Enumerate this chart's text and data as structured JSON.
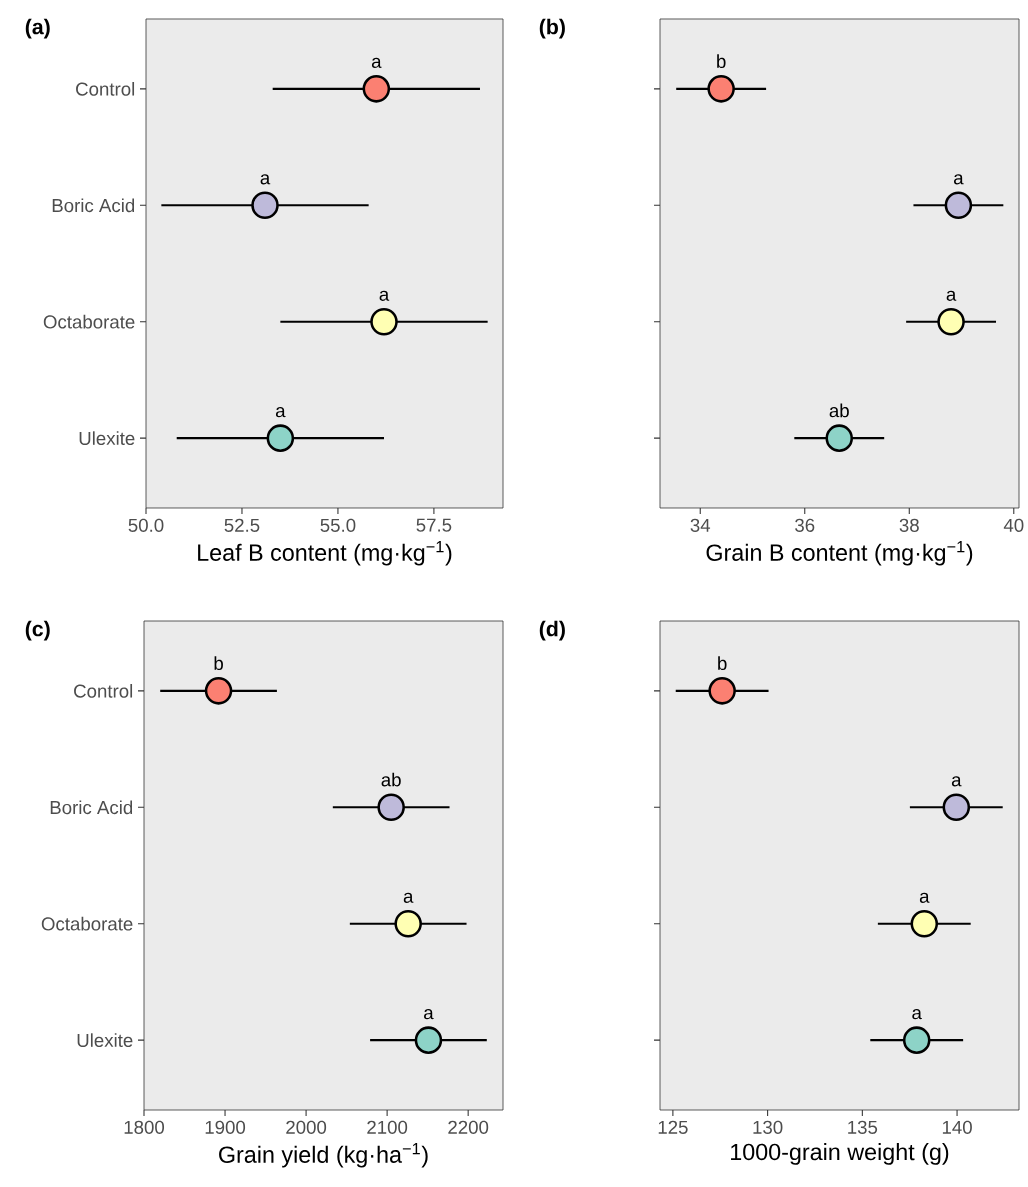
{
  "chart_data": [
    {
      "type": "scatter",
      "orientation": "horizontal",
      "title": "(a)",
      "xlabel": "Leaf B content (mg·kg$^{−1}$)",
      "categories": [
        "Control",
        "Boric Acid",
        "Octaborate",
        "Ulexite"
      ],
      "values": [
        56.0,
        53.1,
        56.2,
        53.5
      ],
      "errors": [
        2.7,
        2.7,
        2.7,
        2.7
      ],
      "colors": [
        "#fb8072",
        "#bebada",
        "#ffffb3",
        "#8dd3c7"
      ],
      "marker": "circle",
      "xlim": [
        50,
        59.3
      ],
      "xticks": [
        {
          "value": 50,
          "label": "50.0"
        },
        52.5,
        {
          "value": 55,
          "label": "55.0"
        },
        57.5
      ],
      "annotations": [
        {
          "text": "a",
          "x": 56.0,
          "y": "Control"
        },
        {
          "text": "a",
          "x": 53.1,
          "y": "Boric Acid"
        },
        {
          "text": "a",
          "x": 56.2,
          "y": "Octaborate"
        },
        {
          "text": "a",
          "x": 53.5,
          "y": "Ulexite"
        }
      ]
    },
    {
      "type": "scatter",
      "orientation": "horizontal",
      "title": "(b)",
      "xlabel": "Grain B content (mg·kg$^{−1}$)",
      "categories": [
        "Control",
        "Boric Acid",
        "Octaborate",
        "Ulexite"
      ],
      "values": [
        34.4,
        38.94,
        38.8,
        36.66
      ],
      "errors": [
        0.86,
        0.86,
        0.86,
        0.86
      ],
      "colors": [
        "#fb8072",
        "#bebada",
        "#ffffb3",
        "#8dd3c7"
      ],
      "marker": "circle",
      "xlim": [
        33.23,
        40.1
      ],
      "xticks": [
        34,
        36,
        38,
        40
      ],
      "tick_labels": "x",
      "annotations": [
        {
          "text": "b",
          "x": 34.4,
          "y": "Control"
        },
        {
          "text": "a",
          "x": 38.94,
          "y": "Boric Acid"
        },
        {
          "text": "a",
          "x": 38.8,
          "y": "Octaborate"
        },
        {
          "text": "ab",
          "x": 36.66,
          "y": "Ulexite"
        }
      ]
    },
    {
      "type": "scatter",
      "orientation": "horizontal",
      "title": "(c)",
      "xlabel": "Grain yield (kg·ha$^{−1}$)",
      "categories": [
        "Control",
        "Boric Acid",
        "Octaborate",
        "Ulexite"
      ],
      "values": [
        1892,
        2105,
        2126,
        2151
      ],
      "errors": [
        72,
        72,
        72,
        72
      ],
      "colors": [
        "#fb8072",
        "#bebada",
        "#ffffb3",
        "#8dd3c7"
      ],
      "marker": "circle",
      "xlim": [
        1800,
        2243
      ],
      "xticks": [
        1800,
        1900,
        2000,
        2100,
        2200
      ],
      "annotations": [
        {
          "text": "b",
          "x": 1892,
          "y": "Control"
        },
        {
          "text": "ab",
          "x": 2105,
          "y": "Boric Acid"
        },
        {
          "text": "a",
          "x": 2126,
          "y": "Octaborate"
        },
        {
          "text": "a",
          "x": 2151,
          "y": "Ulexite"
        }
      ]
    },
    {
      "type": "scatter",
      "orientation": "horizontal",
      "title": "(d)",
      "xlabel": "1000-grain weight (g)",
      "categories": [
        "Control",
        "Boric Acid",
        "Octaborate",
        "Ulexite"
      ],
      "values": [
        127.6,
        139.96,
        138.27,
        137.87
      ],
      "errors": [
        2.45,
        2.45,
        2.45,
        2.45
      ],
      "colors": [
        "#fb8072",
        "#bebada",
        "#ffffb3",
        "#8dd3c7"
      ],
      "marker": "circle",
      "xlim": [
        124.32,
        143.27
      ],
      "xticks": [
        125,
        130,
        135,
        140
      ],
      "tick_labels": "x",
      "annotations": [
        {
          "text": "b",
          "x": 127.6,
          "y": "Control"
        },
        {
          "text": "a",
          "x": 139.96,
          "y": "Boric Acid"
        },
        {
          "text": "a",
          "x": 138.27,
          "y": "Octaborate"
        },
        {
          "text": "a",
          "x": 137.87,
          "y": "Ulexite"
        }
      ]
    }
  ]
}
